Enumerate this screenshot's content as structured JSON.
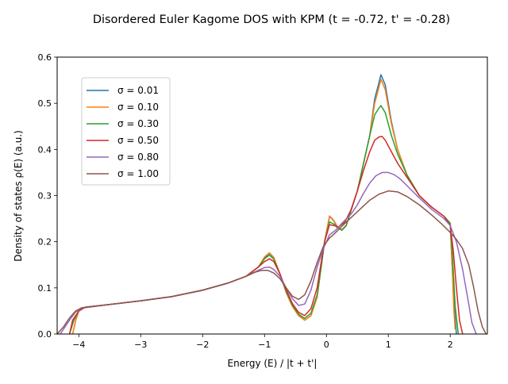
{
  "chart_data": {
    "type": "line",
    "title": "Disordered Euler Kagome DOS with KPM (t = -0.72, t' = -0.28)",
    "xlabel": "Energy (E) / |t + t'|",
    "ylabel": "Density of states ρ(E) (a.u.)",
    "xlim": [
      -4.35,
      2.6
    ],
    "ylim": [
      0,
      0.6
    ],
    "xticks": [
      -4,
      -3,
      -2,
      -1,
      0,
      1,
      2
    ],
    "xtick_labels": [
      "−4",
      "−3",
      "−2",
      "−1",
      "0",
      "1",
      "2"
    ],
    "yticks": [
      0.0,
      0.1,
      0.2,
      0.3,
      0.4,
      0.5,
      0.6
    ],
    "ytick_labels": [
      "0.0",
      "0.1",
      "0.2",
      "0.3",
      "0.4",
      "0.5",
      "0.6"
    ],
    "grid": false,
    "legend_position": "upper-left",
    "series": [
      {
        "name": "σ = 0.01",
        "color": "#1f77b4",
        "points": [
          [
            -4.1,
            0.0
          ],
          [
            -4.05,
            0.03
          ],
          [
            -4.0,
            0.05
          ],
          [
            -3.9,
            0.058
          ],
          [
            -3.5,
            0.064
          ],
          [
            -3.0,
            0.072
          ],
          [
            -2.5,
            0.081
          ],
          [
            -2.0,
            0.095
          ],
          [
            -1.6,
            0.11
          ],
          [
            -1.3,
            0.125
          ],
          [
            -1.1,
            0.145
          ],
          [
            -1.0,
            0.165
          ],
          [
            -0.92,
            0.175
          ],
          [
            -0.85,
            0.165
          ],
          [
            -0.75,
            0.13
          ],
          [
            -0.65,
            0.09
          ],
          [
            -0.55,
            0.06
          ],
          [
            -0.45,
            0.04
          ],
          [
            -0.35,
            0.03
          ],
          [
            -0.25,
            0.04
          ],
          [
            -0.15,
            0.08
          ],
          [
            -0.08,
            0.15
          ],
          [
            -0.03,
            0.2
          ],
          [
            0.05,
            0.255
          ],
          [
            0.12,
            0.245
          ],
          [
            0.18,
            0.23
          ],
          [
            0.25,
            0.225
          ],
          [
            0.32,
            0.235
          ],
          [
            0.4,
            0.27
          ],
          [
            0.5,
            0.31
          ],
          [
            0.6,
            0.37
          ],
          [
            0.7,
            0.43
          ],
          [
            0.78,
            0.51
          ],
          [
            0.85,
            0.545
          ],
          [
            0.88,
            0.562
          ],
          [
            0.95,
            0.54
          ],
          [
            1.05,
            0.46
          ],
          [
            1.15,
            0.4
          ],
          [
            1.3,
            0.345
          ],
          [
            1.5,
            0.3
          ],
          [
            1.7,
            0.275
          ],
          [
            1.9,
            0.255
          ],
          [
            2.0,
            0.24
          ],
          [
            2.03,
            0.15
          ],
          [
            2.07,
            0.05
          ],
          [
            2.1,
            0.0
          ]
        ]
      },
      {
        "name": "σ = 0.10",
        "color": "#ff7f0e",
        "points": [
          [
            -4.1,
            0.0
          ],
          [
            -4.05,
            0.03
          ],
          [
            -4.0,
            0.05
          ],
          [
            -3.9,
            0.058
          ],
          [
            -3.5,
            0.064
          ],
          [
            -3.0,
            0.072
          ],
          [
            -2.5,
            0.081
          ],
          [
            -2.0,
            0.095
          ],
          [
            -1.6,
            0.11
          ],
          [
            -1.3,
            0.125
          ],
          [
            -1.1,
            0.145
          ],
          [
            -1.0,
            0.167
          ],
          [
            -0.92,
            0.176
          ],
          [
            -0.85,
            0.166
          ],
          [
            -0.75,
            0.13
          ],
          [
            -0.65,
            0.09
          ],
          [
            -0.55,
            0.06
          ],
          [
            -0.45,
            0.04
          ],
          [
            -0.35,
            0.03
          ],
          [
            -0.25,
            0.04
          ],
          [
            -0.15,
            0.08
          ],
          [
            -0.08,
            0.15
          ],
          [
            -0.03,
            0.2
          ],
          [
            0.05,
            0.256
          ],
          [
            0.12,
            0.246
          ],
          [
            0.18,
            0.232
          ],
          [
            0.25,
            0.226
          ],
          [
            0.32,
            0.236
          ],
          [
            0.4,
            0.27
          ],
          [
            0.5,
            0.31
          ],
          [
            0.6,
            0.37
          ],
          [
            0.7,
            0.43
          ],
          [
            0.78,
            0.5
          ],
          [
            0.85,
            0.535
          ],
          [
            0.88,
            0.552
          ],
          [
            0.95,
            0.53
          ],
          [
            1.05,
            0.455
          ],
          [
            1.15,
            0.4
          ],
          [
            1.3,
            0.345
          ],
          [
            1.5,
            0.3
          ],
          [
            1.7,
            0.275
          ],
          [
            1.9,
            0.255
          ],
          [
            2.0,
            0.24
          ],
          [
            2.03,
            0.15
          ],
          [
            2.06,
            0.05
          ],
          [
            2.08,
            0.01
          ]
        ]
      },
      {
        "name": "σ = 0.30",
        "color": "#2ca02c",
        "points": [
          [
            -4.15,
            0.0
          ],
          [
            -4.08,
            0.03
          ],
          [
            -4.0,
            0.05
          ],
          [
            -3.9,
            0.058
          ],
          [
            -3.5,
            0.064
          ],
          [
            -3.0,
            0.072
          ],
          [
            -2.5,
            0.081
          ],
          [
            -2.0,
            0.095
          ],
          [
            -1.6,
            0.11
          ],
          [
            -1.3,
            0.125
          ],
          [
            -1.1,
            0.145
          ],
          [
            -1.0,
            0.163
          ],
          [
            -0.92,
            0.171
          ],
          [
            -0.85,
            0.162
          ],
          [
            -0.75,
            0.13
          ],
          [
            -0.65,
            0.093
          ],
          [
            -0.55,
            0.063
          ],
          [
            -0.45,
            0.043
          ],
          [
            -0.35,
            0.034
          ],
          [
            -0.25,
            0.045
          ],
          [
            -0.15,
            0.085
          ],
          [
            -0.08,
            0.15
          ],
          [
            -0.03,
            0.2
          ],
          [
            0.05,
            0.243
          ],
          [
            0.12,
            0.238
          ],
          [
            0.18,
            0.23
          ],
          [
            0.25,
            0.225
          ],
          [
            0.32,
            0.235
          ],
          [
            0.4,
            0.268
          ],
          [
            0.5,
            0.31
          ],
          [
            0.6,
            0.37
          ],
          [
            0.7,
            0.43
          ],
          [
            0.78,
            0.475
          ],
          [
            0.85,
            0.49
          ],
          [
            0.88,
            0.495
          ],
          [
            0.95,
            0.48
          ],
          [
            1.05,
            0.43
          ],
          [
            1.15,
            0.39
          ],
          [
            1.3,
            0.345
          ],
          [
            1.5,
            0.3
          ],
          [
            1.7,
            0.275
          ],
          [
            1.9,
            0.255
          ],
          [
            2.0,
            0.24
          ],
          [
            2.04,
            0.16
          ],
          [
            2.08,
            0.06
          ],
          [
            2.13,
            0.0
          ]
        ]
      },
      {
        "name": "σ = 0.50",
        "color": "#d62728",
        "points": [
          [
            -4.15,
            0.0
          ],
          [
            -4.1,
            0.03
          ],
          [
            -4.0,
            0.05
          ],
          [
            -3.9,
            0.058
          ],
          [
            -3.5,
            0.064
          ],
          [
            -3.0,
            0.072
          ],
          [
            -2.5,
            0.081
          ],
          [
            -2.0,
            0.095
          ],
          [
            -1.6,
            0.11
          ],
          [
            -1.3,
            0.125
          ],
          [
            -1.1,
            0.145
          ],
          [
            -1.0,
            0.157
          ],
          [
            -0.92,
            0.163
          ],
          [
            -0.85,
            0.157
          ],
          [
            -0.75,
            0.13
          ],
          [
            -0.65,
            0.096
          ],
          [
            -0.55,
            0.066
          ],
          [
            -0.45,
            0.047
          ],
          [
            -0.35,
            0.04
          ],
          [
            -0.25,
            0.055
          ],
          [
            -0.15,
            0.1
          ],
          [
            -0.08,
            0.16
          ],
          [
            -0.03,
            0.2
          ],
          [
            0.05,
            0.237
          ],
          [
            0.12,
            0.235
          ],
          [
            0.2,
            0.232
          ],
          [
            0.3,
            0.243
          ],
          [
            0.4,
            0.27
          ],
          [
            0.5,
            0.31
          ],
          [
            0.6,
            0.355
          ],
          [
            0.7,
            0.395
          ],
          [
            0.78,
            0.42
          ],
          [
            0.85,
            0.427
          ],
          [
            0.9,
            0.428
          ],
          [
            0.95,
            0.42
          ],
          [
            1.05,
            0.395
          ],
          [
            1.15,
            0.37
          ],
          [
            1.3,
            0.34
          ],
          [
            1.5,
            0.3
          ],
          [
            1.7,
            0.275
          ],
          [
            1.9,
            0.255
          ],
          [
            2.0,
            0.235
          ],
          [
            2.05,
            0.18
          ],
          [
            2.1,
            0.1
          ],
          [
            2.15,
            0.03
          ],
          [
            2.2,
            0.0
          ]
        ]
      },
      {
        "name": "σ = 0.80",
        "color": "#9467bd",
        "points": [
          [
            -4.3,
            0.0
          ],
          [
            -4.25,
            0.01
          ],
          [
            -4.15,
            0.03
          ],
          [
            -4.05,
            0.048
          ],
          [
            -3.95,
            0.056
          ],
          [
            -3.5,
            0.064
          ],
          [
            -3.0,
            0.072
          ],
          [
            -2.5,
            0.081
          ],
          [
            -2.0,
            0.095
          ],
          [
            -1.6,
            0.11
          ],
          [
            -1.3,
            0.125
          ],
          [
            -1.1,
            0.138
          ],
          [
            -1.0,
            0.144
          ],
          [
            -0.92,
            0.145
          ],
          [
            -0.85,
            0.14
          ],
          [
            -0.75,
            0.125
          ],
          [
            -0.65,
            0.1
          ],
          [
            -0.55,
            0.077
          ],
          [
            -0.45,
            0.062
          ],
          [
            -0.35,
            0.065
          ],
          [
            -0.25,
            0.095
          ],
          [
            -0.15,
            0.145
          ],
          [
            -0.05,
            0.185
          ],
          [
            0.05,
            0.215
          ],
          [
            0.15,
            0.225
          ],
          [
            0.25,
            0.24
          ],
          [
            0.4,
            0.26
          ],
          [
            0.5,
            0.28
          ],
          [
            0.6,
            0.305
          ],
          [
            0.7,
            0.327
          ],
          [
            0.8,
            0.343
          ],
          [
            0.9,
            0.35
          ],
          [
            1.0,
            0.35
          ],
          [
            1.1,
            0.345
          ],
          [
            1.2,
            0.335
          ],
          [
            1.35,
            0.315
          ],
          [
            1.5,
            0.295
          ],
          [
            1.7,
            0.27
          ],
          [
            1.9,
            0.25
          ],
          [
            2.0,
            0.235
          ],
          [
            2.1,
            0.2
          ],
          [
            2.2,
            0.14
          ],
          [
            2.28,
            0.08
          ],
          [
            2.35,
            0.025
          ],
          [
            2.42,
            0.0
          ]
        ]
      },
      {
        "name": "σ = 1.00",
        "color": "#8c564b",
        "points": [
          [
            -4.35,
            0.0
          ],
          [
            -4.25,
            0.015
          ],
          [
            -4.15,
            0.035
          ],
          [
            -4.05,
            0.05
          ],
          [
            -3.95,
            0.057
          ],
          [
            -3.5,
            0.064
          ],
          [
            -3.0,
            0.072
          ],
          [
            -2.5,
            0.081
          ],
          [
            -2.0,
            0.095
          ],
          [
            -1.6,
            0.11
          ],
          [
            -1.3,
            0.125
          ],
          [
            -1.15,
            0.134
          ],
          [
            -1.05,
            0.138
          ],
          [
            -0.95,
            0.138
          ],
          [
            -0.85,
            0.132
          ],
          [
            -0.75,
            0.12
          ],
          [
            -0.65,
            0.1
          ],
          [
            -0.55,
            0.082
          ],
          [
            -0.45,
            0.075
          ],
          [
            -0.35,
            0.085
          ],
          [
            -0.25,
            0.115
          ],
          [
            -0.15,
            0.155
          ],
          [
            -0.05,
            0.19
          ],
          [
            0.05,
            0.208
          ],
          [
            0.15,
            0.22
          ],
          [
            0.3,
            0.24
          ],
          [
            0.5,
            0.265
          ],
          [
            0.7,
            0.29
          ],
          [
            0.85,
            0.303
          ],
          [
            1.0,
            0.31
          ],
          [
            1.15,
            0.308
          ],
          [
            1.3,
            0.298
          ],
          [
            1.5,
            0.28
          ],
          [
            1.7,
            0.258
          ],
          [
            1.85,
            0.24
          ],
          [
            2.0,
            0.22
          ],
          [
            2.1,
            0.205
          ],
          [
            2.2,
            0.185
          ],
          [
            2.3,
            0.15
          ],
          [
            2.38,
            0.1
          ],
          [
            2.45,
            0.05
          ],
          [
            2.52,
            0.015
          ],
          [
            2.58,
            0.0
          ]
        ]
      }
    ]
  }
}
